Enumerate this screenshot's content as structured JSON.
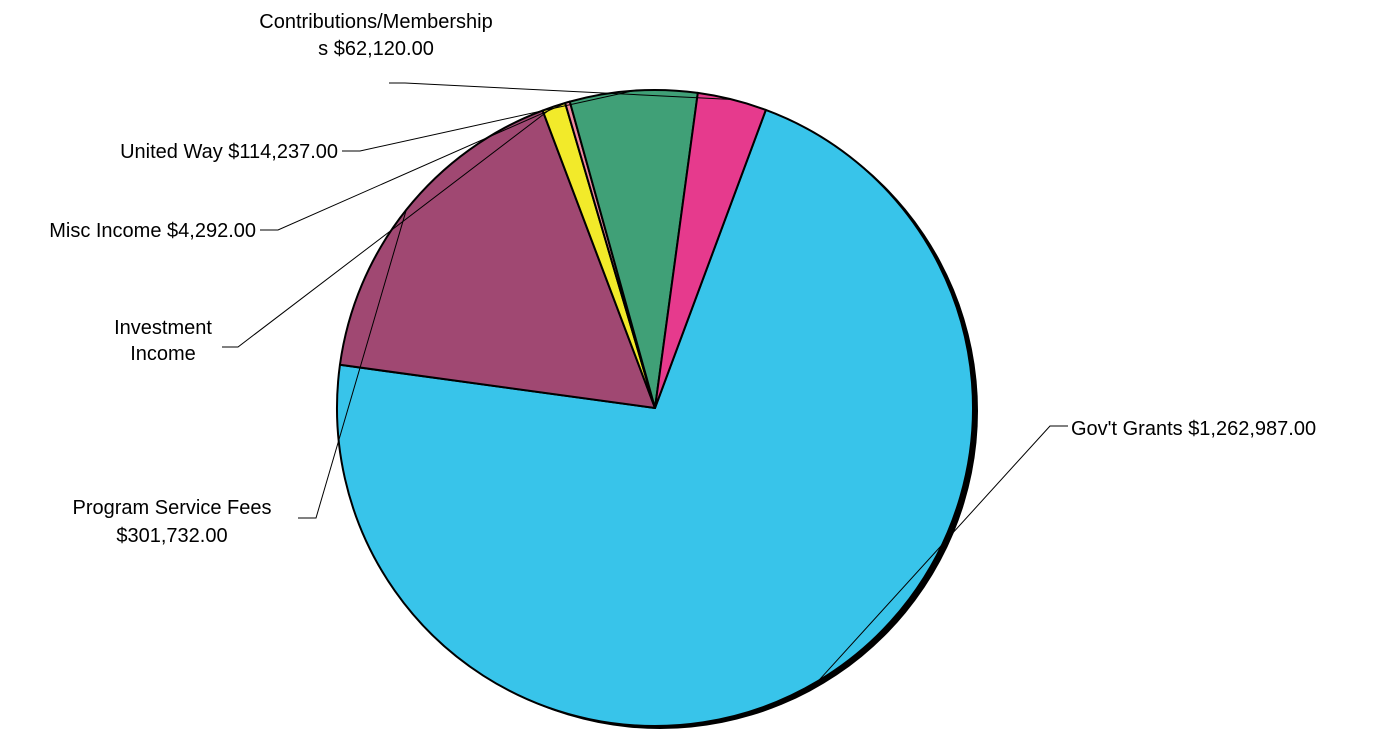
{
  "chart_data": {
    "type": "pie",
    "title": "",
    "legend": "none",
    "slices": [
      {
        "key": "govt",
        "name": "Gov't Grants",
        "value": 1262987.0,
        "value_label": "$1,262,987.00",
        "color": "#38c4ea"
      },
      {
        "key": "program",
        "name": "Program Service Fees",
        "value": 301732.0,
        "value_label": "$301,732.00",
        "color": "#a04872"
      },
      {
        "key": "investment",
        "name": "Investment Income",
        "value": 21000,
        "value_label": "",
        "color": "#f2ea2a"
      },
      {
        "key": "misc",
        "name": "Misc Income",
        "value": 4292.0,
        "value_label": "$4,292.00",
        "color": "#f08aa2"
      },
      {
        "key": "unitedway",
        "name": "United Way",
        "value": 114237.0,
        "value_label": "$114,237.00",
        "color": "#40a077"
      },
      {
        "key": "contrib",
        "name": "Contributions/Membership",
        "value": 62120.0,
        "value_label": "$62,120.00",
        "color": "#e63a8d"
      }
    ],
    "labels": {
      "govt": [
        "Gov't Grants $1,262,987.00"
      ],
      "program": [
        "Program Service Fees",
        "$301,732.00"
      ],
      "investment": [
        "Investment",
        "Income"
      ],
      "misc": [
        "Misc Income $4,292.00"
      ],
      "unitedway": [
        "United Way $114,237.00"
      ],
      "contrib": [
        "Contributions/Membership",
        "s $62,120.00"
      ]
    }
  }
}
